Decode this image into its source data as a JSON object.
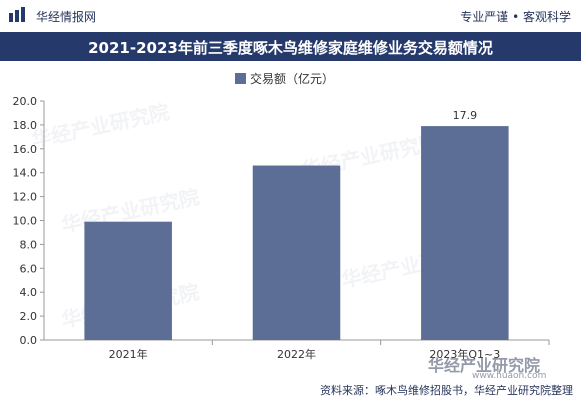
{
  "header": {
    "brand": "华经情报网",
    "tagline": "专业严谨 • 客观科学"
  },
  "title": "2021-2023年前三季度啄木鸟维修家庭维修业务交易额情况",
  "source": "资料来源：啄木鸟维修招股书，华经产业研究院整理",
  "watermark": {
    "text": "华经产业研究院",
    "url": "www.huaon.com"
  },
  "colors": {
    "bar": "#5d6e96",
    "title_bg": "#253a6b"
  },
  "chart_data": {
    "type": "bar",
    "categories": [
      "2021年",
      "2022年",
      "2023年Q1~3"
    ],
    "series": [
      {
        "name": "交易额（亿元）",
        "values": [
          9.9,
          14.6,
          17.9
        ]
      }
    ],
    "data_labels": [
      "",
      "",
      "17.9"
    ],
    "ylim": [
      0,
      20
    ],
    "yticks": [
      "0.0",
      "2.0",
      "4.0",
      "6.0",
      "8.0",
      "10.0",
      "12.0",
      "14.0",
      "16.0",
      "18.0",
      "20.0"
    ],
    "legend": "top-center",
    "grid": false
  }
}
